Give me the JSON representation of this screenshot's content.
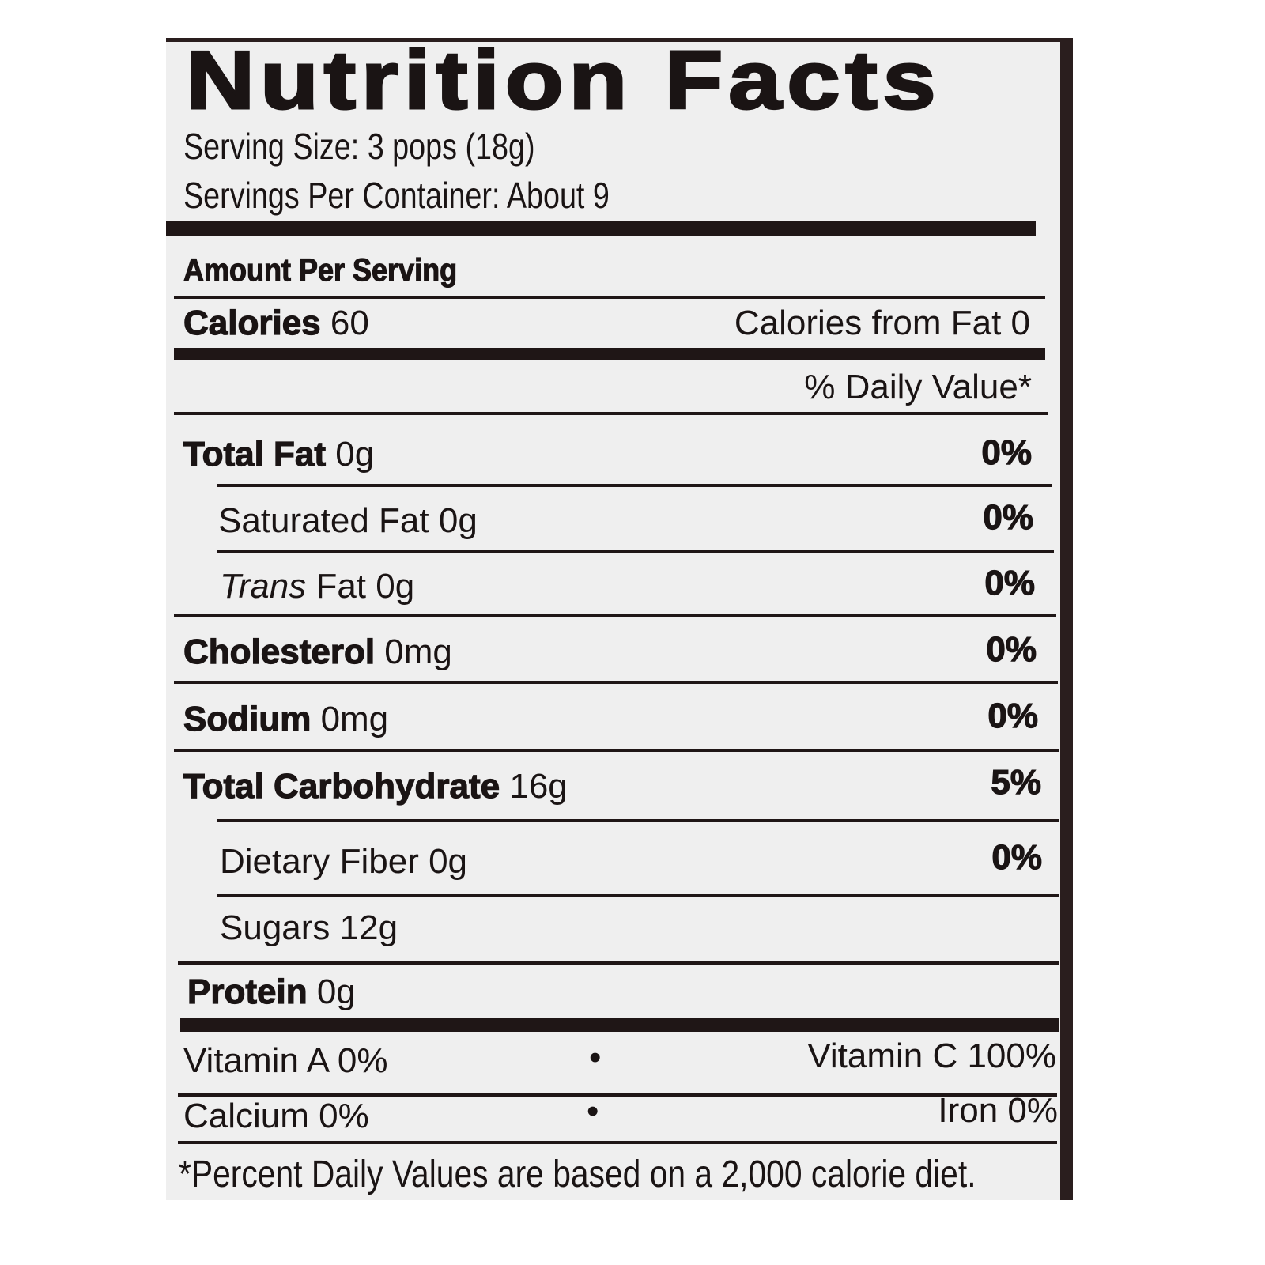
{
  "title": "Nutrition Facts",
  "serving_size": "Serving Size: 3 pops (18g)",
  "servings_per_container": "Servings Per Container: About 9",
  "amount_per_serving": "Amount Per Serving",
  "calories": {
    "label": "Calories",
    "value": "60",
    "from_fat": "Calories from Fat 0"
  },
  "daily_value_header": "% Daily Value*",
  "nutrients": [
    {
      "label": "Total Fat",
      "amount": "0g",
      "dv": "0%"
    },
    {
      "label": "Saturated Fat",
      "amount": "0g",
      "dv": "0%"
    },
    {
      "label_italic": "Trans",
      "label": "Fat",
      "amount": "0g",
      "dv": "0%"
    },
    {
      "label": "Cholesterol",
      "amount": "0mg",
      "dv": "0%"
    },
    {
      "label": "Sodium",
      "amount": "0mg",
      "dv": "0%"
    },
    {
      "label": "Total Carbohydrate",
      "amount": "16g",
      "dv": "5%"
    },
    {
      "label": "Dietary Fiber",
      "amount": "0g",
      "dv": "0%"
    },
    {
      "label": "Sugars",
      "amount": "12g"
    },
    {
      "label": "Protein",
      "amount": "0g"
    }
  ],
  "vitamins": {
    "vitamin_a": "Vitamin  A 0%",
    "vitamin_c": "Vitamin C 100%",
    "calcium": "Calcium 0%",
    "iron": "Iron 0%",
    "separator": "•"
  },
  "footnote": "*Percent Daily Values are based on a 2,000 calorie diet."
}
